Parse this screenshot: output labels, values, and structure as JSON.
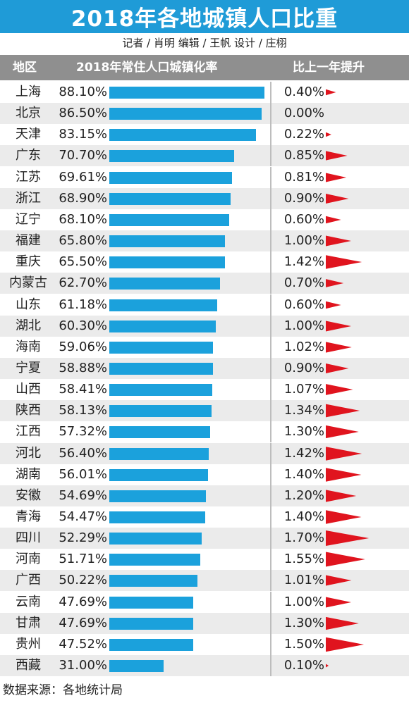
{
  "title": "2018年各地城镇人口比重",
  "credits": "记者 / 肖明   编辑 / 王帆   设计 / 庄栩",
  "headers": {
    "region": "地区",
    "rate": "2018年常住人口城镇化率",
    "increase": "比上一年提升"
  },
  "footer": "数据来源：各地统计局",
  "colors": {
    "title_bg": "#1f9bd7",
    "bar": "#1ba1dc",
    "triangle": "#e0141e",
    "header_bg": "#8f8f8f",
    "alt_row": "#ebebeb"
  },
  "chart_data": {
    "type": "table",
    "columns": [
      "地区",
      "2018年常住人口城镇化率",
      "比上一年提升"
    ],
    "rows": [
      {
        "region": "上海",
        "rate": 88.1,
        "rate_label": "88.10%",
        "inc": 0.4,
        "inc_label": "0.40%"
      },
      {
        "region": "北京",
        "rate": 86.5,
        "rate_label": "86.50%",
        "inc": 0.0,
        "inc_label": "0.00%"
      },
      {
        "region": "天津",
        "rate": 83.15,
        "rate_label": "83.15%",
        "inc": 0.22,
        "inc_label": "0.22%"
      },
      {
        "region": "广东",
        "rate": 70.7,
        "rate_label": "70.70%",
        "inc": 0.85,
        "inc_label": "0.85%"
      },
      {
        "region": "江苏",
        "rate": 69.61,
        "rate_label": "69.61%",
        "inc": 0.81,
        "inc_label": "0.81%"
      },
      {
        "region": "浙江",
        "rate": 68.9,
        "rate_label": "68.90%",
        "inc": 0.9,
        "inc_label": "0.90%"
      },
      {
        "region": "辽宁",
        "rate": 68.1,
        "rate_label": "68.10%",
        "inc": 0.6,
        "inc_label": "0.60%"
      },
      {
        "region": "福建",
        "rate": 65.8,
        "rate_label": "65.80%",
        "inc": 1.0,
        "inc_label": "1.00%"
      },
      {
        "region": "重庆",
        "rate": 65.5,
        "rate_label": "65.50%",
        "inc": 1.42,
        "inc_label": "1.42%"
      },
      {
        "region": "内蒙古",
        "rate": 62.7,
        "rate_label": "62.70%",
        "inc": 0.7,
        "inc_label": "0.70%"
      },
      {
        "region": "山东",
        "rate": 61.18,
        "rate_label": "61.18%",
        "inc": 0.6,
        "inc_label": "0.60%"
      },
      {
        "region": "湖北",
        "rate": 60.3,
        "rate_label": "60.30%",
        "inc": 1.0,
        "inc_label": "1.00%"
      },
      {
        "region": "海南",
        "rate": 59.06,
        "rate_label": "59.06%",
        "inc": 1.02,
        "inc_label": "1.02%"
      },
      {
        "region": "宁夏",
        "rate": 58.88,
        "rate_label": "58.88%",
        "inc": 0.9,
        "inc_label": "0.90%"
      },
      {
        "region": "山西",
        "rate": 58.41,
        "rate_label": "58.41%",
        "inc": 1.07,
        "inc_label": "1.07%"
      },
      {
        "region": "陕西",
        "rate": 58.13,
        "rate_label": "58.13%",
        "inc": 1.34,
        "inc_label": "1.34%"
      },
      {
        "region": "江西",
        "rate": 57.32,
        "rate_label": "57.32%",
        "inc": 1.3,
        "inc_label": "1.30%"
      },
      {
        "region": "河北",
        "rate": 56.4,
        "rate_label": "56.40%",
        "inc": 1.42,
        "inc_label": "1.42%"
      },
      {
        "region": "湖南",
        "rate": 56.01,
        "rate_label": "56.01%",
        "inc": 1.4,
        "inc_label": "1.40%"
      },
      {
        "region": "安徽",
        "rate": 54.69,
        "rate_label": "54.69%",
        "inc": 1.2,
        "inc_label": "1.20%"
      },
      {
        "region": "青海",
        "rate": 54.47,
        "rate_label": "54.47%",
        "inc": 1.4,
        "inc_label": "1.40%"
      },
      {
        "region": "四川",
        "rate": 52.29,
        "rate_label": "52.29%",
        "inc": 1.7,
        "inc_label": "1.70%"
      },
      {
        "region": "河南",
        "rate": 51.71,
        "rate_label": "51.71%",
        "inc": 1.55,
        "inc_label": "1.55%"
      },
      {
        "region": "广西",
        "rate": 50.22,
        "rate_label": "50.22%",
        "inc": 1.01,
        "inc_label": "1.01%"
      },
      {
        "region": "云南",
        "rate": 47.69,
        "rate_label": "47.69%",
        "inc": 1.0,
        "inc_label": "1.00%"
      },
      {
        "region": "甘肃",
        "rate": 47.69,
        "rate_label": "47.69%",
        "inc": 1.3,
        "inc_label": "1.30%"
      },
      {
        "region": "贵州",
        "rate": 47.52,
        "rate_label": "47.52%",
        "inc": 1.5,
        "inc_label": "1.50%"
      },
      {
        "region": "西藏",
        "rate": 31.0,
        "rate_label": "31.00%",
        "inc": 0.1,
        "inc_label": "0.10%"
      }
    ]
  }
}
